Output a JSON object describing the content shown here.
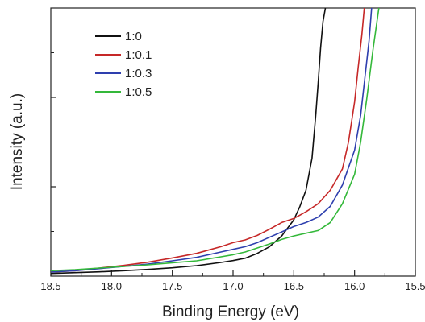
{
  "chart_data": {
    "type": "line",
    "title": "",
    "xlabel": "Binding Energy (eV)",
    "ylabel": "Intensity (a.u.)",
    "x_reversed": true,
    "xlim": [
      18.5,
      15.5
    ],
    "ylim": [
      0,
      1
    ],
    "x_ticks": [
      "18.5",
      "18.0",
      "17.5",
      "17.0",
      "16.5",
      "16.0",
      "15.5"
    ],
    "x_tick_values": [
      18.5,
      18.0,
      17.5,
      17.0,
      16.5,
      16.0,
      15.5
    ],
    "y_ticks_labeled": false,
    "grid": false,
    "legend_position": "top-left",
    "series": [
      {
        "name": "1:0",
        "color": "#111111",
        "points": [
          [
            18.5,
            0.01
          ],
          [
            18.3,
            0.013
          ],
          [
            18.1,
            0.016
          ],
          [
            17.9,
            0.02
          ],
          [
            17.7,
            0.025
          ],
          [
            17.5,
            0.031
          ],
          [
            17.3,
            0.039
          ],
          [
            17.1,
            0.051
          ],
          [
            17.0,
            0.058
          ],
          [
            16.9,
            0.067
          ],
          [
            16.8,
            0.085
          ],
          [
            16.7,
            0.11
          ],
          [
            16.6,
            0.15
          ],
          [
            16.5,
            0.21
          ],
          [
            16.45,
            0.26
          ],
          [
            16.4,
            0.32
          ],
          [
            16.35,
            0.44
          ],
          [
            16.32,
            0.6
          ],
          [
            16.3,
            0.72
          ],
          [
            16.28,
            0.85
          ],
          [
            16.26,
            0.95
          ],
          [
            16.24,
            1.0
          ]
        ]
      },
      {
        "name": "1:0.1",
        "color": "#c62828",
        "points": [
          [
            18.5,
            0.015
          ],
          [
            18.3,
            0.02
          ],
          [
            18.1,
            0.03
          ],
          [
            17.9,
            0.04
          ],
          [
            17.7,
            0.052
          ],
          [
            17.5,
            0.068
          ],
          [
            17.3,
            0.085
          ],
          [
            17.1,
            0.11
          ],
          [
            17.0,
            0.125
          ],
          [
            16.9,
            0.135
          ],
          [
            16.8,
            0.152
          ],
          [
            16.7,
            0.175
          ],
          [
            16.6,
            0.2
          ],
          [
            16.5,
            0.215
          ],
          [
            16.4,
            0.24
          ],
          [
            16.3,
            0.27
          ],
          [
            16.2,
            0.32
          ],
          [
            16.1,
            0.4
          ],
          [
            16.05,
            0.5
          ],
          [
            16.0,
            0.65
          ],
          [
            15.97,
            0.78
          ],
          [
            15.94,
            0.9
          ],
          [
            15.92,
            1.0
          ]
        ]
      },
      {
        "name": "1:0.3",
        "color": "#2e3fae",
        "points": [
          [
            18.5,
            0.015
          ],
          [
            18.3,
            0.02
          ],
          [
            18.1,
            0.028
          ],
          [
            17.9,
            0.036
          ],
          [
            17.7,
            0.045
          ],
          [
            17.5,
            0.057
          ],
          [
            17.3,
            0.07
          ],
          [
            17.1,
            0.09
          ],
          [
            17.0,
            0.1
          ],
          [
            16.9,
            0.11
          ],
          [
            16.8,
            0.125
          ],
          [
            16.7,
            0.145
          ],
          [
            16.6,
            0.165
          ],
          [
            16.5,
            0.185
          ],
          [
            16.4,
            0.2
          ],
          [
            16.3,
            0.22
          ],
          [
            16.2,
            0.26
          ],
          [
            16.1,
            0.34
          ],
          [
            16.0,
            0.47
          ],
          [
            15.95,
            0.6
          ],
          [
            15.92,
            0.72
          ],
          [
            15.88,
            0.88
          ],
          [
            15.86,
            1.0
          ]
        ]
      },
      {
        "name": "1:0.5",
        "color": "#34b83a",
        "points": [
          [
            18.5,
            0.02
          ],
          [
            18.3,
            0.024
          ],
          [
            18.1,
            0.03
          ],
          [
            17.9,
            0.036
          ],
          [
            17.7,
            0.042
          ],
          [
            17.5,
            0.05
          ],
          [
            17.3,
            0.057
          ],
          [
            17.1,
            0.072
          ],
          [
            17.0,
            0.08
          ],
          [
            16.9,
            0.09
          ],
          [
            16.8,
            0.105
          ],
          [
            16.7,
            0.12
          ],
          [
            16.6,
            0.137
          ],
          [
            16.5,
            0.15
          ],
          [
            16.4,
            0.16
          ],
          [
            16.3,
            0.17
          ],
          [
            16.2,
            0.2
          ],
          [
            16.1,
            0.27
          ],
          [
            16.0,
            0.38
          ],
          [
            15.95,
            0.5
          ],
          [
            15.9,
            0.66
          ],
          [
            15.85,
            0.84
          ],
          [
            15.8,
            1.0
          ]
        ]
      }
    ]
  }
}
